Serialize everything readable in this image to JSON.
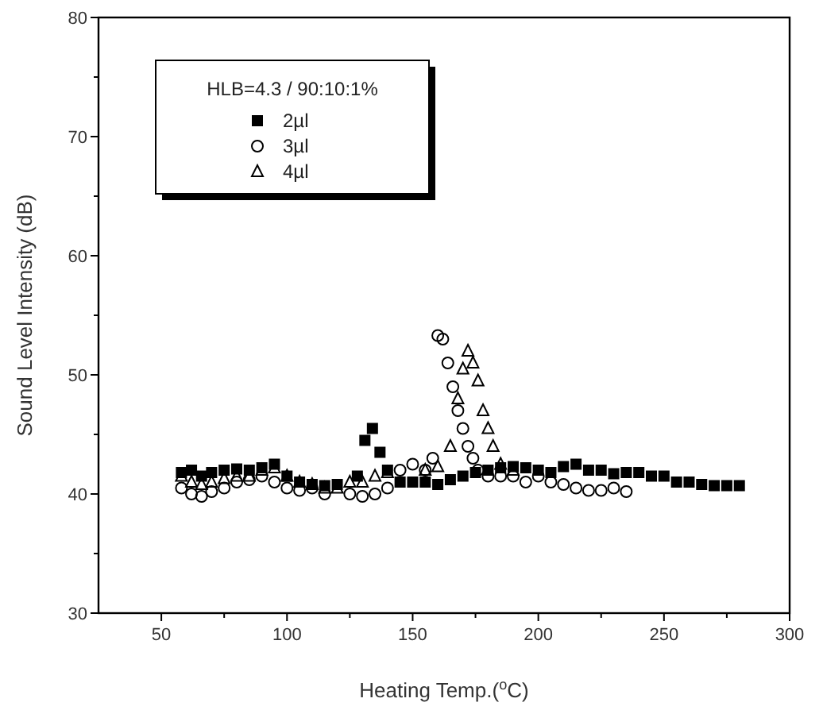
{
  "chart_data": {
    "type": "scatter",
    "xlabel": "Heating Temp.($^{o}$C)",
    "ylabel": "Sound Level Intensity (dB)",
    "legend_title": "HLB=4.3 / 90:10:1%",
    "legend": "top left",
    "xlim": [
      25,
      300
    ],
    "ylim": [
      30,
      80
    ],
    "xticks": [
      50,
      {
        "value": 75,
        "label": null
      },
      100,
      {
        "value": 125,
        "label": null
      },
      150,
      {
        "value": 175,
        "label": null
      },
      200,
      {
        "value": 225,
        "label": null
      },
      250,
      {
        "value": 275,
        "label": null
      },
      300
    ],
    "yticks": [
      30,
      {
        "value": 35,
        "label": null
      },
      40,
      {
        "value": 45,
        "label": null
      },
      50,
      {
        "value": 55,
        "label": null
      },
      60,
      {
        "value": 65,
        "label": null
      },
      70,
      {
        "value": 75,
        "label": null
      },
      80
    ],
    "series": [
      {
        "name": "2µl",
        "color": "#000000",
        "marker": "square",
        "x": [
          58,
          62,
          66,
          70,
          75,
          80,
          85,
          90,
          95,
          100,
          105,
          110,
          115,
          120,
          128,
          131,
          134,
          137,
          140,
          145,
          150,
          155,
          160,
          165,
          170,
          175,
          180,
          185,
          190,
          195,
          200,
          205,
          210,
          215,
          220,
          225,
          230,
          235,
          240,
          245,
          250,
          255,
          260,
          265,
          270,
          275,
          280
        ],
        "values": [
          41.8,
          42,
          41.5,
          41.8,
          42,
          42.1,
          42,
          42.2,
          42.5,
          41.5,
          41,
          40.8,
          40.7,
          40.8,
          41.5,
          44.5,
          45.5,
          43.5,
          42,
          41,
          41,
          41,
          40.8,
          41.2,
          41.5,
          41.8,
          42,
          42.2,
          42.3,
          42.2,
          42,
          41.8,
          42.3,
          42.5,
          42,
          42,
          41.7,
          41.8,
          41.8,
          41.5,
          41.5,
          41,
          41,
          40.8,
          40.7,
          40.7,
          40.7
        ]
      },
      {
        "name": "3µl",
        "color": "#000000",
        "marker": "circle",
        "x": [
          58,
          62,
          66,
          70,
          75,
          80,
          85,
          90,
          95,
          100,
          105,
          110,
          115,
          125,
          130,
          135,
          140,
          145,
          150,
          155,
          158,
          160,
          162,
          164,
          166,
          168,
          170,
          172,
          174,
          176,
          180,
          185,
          190,
          195,
          200,
          205,
          210,
          215,
          220,
          225,
          230,
          235
        ],
        "values": [
          40.5,
          40,
          39.8,
          40.2,
          40.5,
          41,
          41.2,
          41.5,
          41,
          40.5,
          40.3,
          40.5,
          40,
          40,
          39.8,
          40,
          40.5,
          42,
          42.5,
          42,
          43,
          53.3,
          53,
          51,
          49,
          47,
          45.5,
          44,
          43,
          42,
          41.5,
          41.5,
          41.5,
          41,
          41.5,
          41,
          40.8,
          40.5,
          40.3,
          40.3,
          40.5,
          40.2
        ]
      },
      {
        "name": "4µl",
        "color": "#000000",
        "marker": "triangle",
        "x": [
          58,
          62,
          66,
          70,
          75,
          80,
          85,
          90,
          95,
          100,
          105,
          110,
          115,
          120,
          125,
          130,
          135,
          140,
          155,
          160,
          165,
          168,
          170,
          172,
          174,
          176,
          178,
          180,
          182,
          185,
          190
        ],
        "values": [
          41.5,
          41,
          40.8,
          41,
          41.3,
          41.5,
          41.5,
          42,
          42.2,
          41.5,
          41,
          40.8,
          40.5,
          40.5,
          41,
          41,
          41.5,
          41.8,
          42,
          42.3,
          44,
          48,
          50.5,
          52,
          51,
          49.5,
          47,
          45.5,
          44,
          42.5,
          42
        ]
      }
    ]
  }
}
